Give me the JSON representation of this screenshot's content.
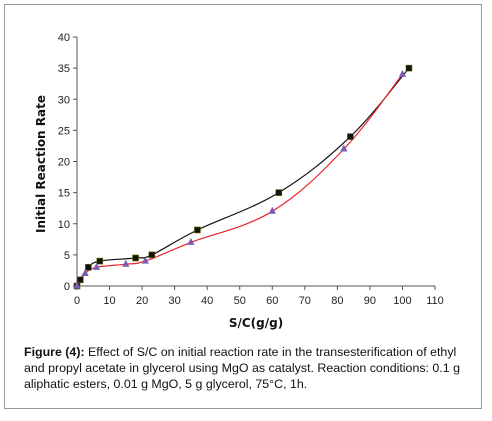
{
  "chart_data": {
    "type": "scatter",
    "xlabel": "S/C(g/g)",
    "ylabel": "Initial Reaction Rate",
    "xlim": [
      0,
      110
    ],
    "ylim": [
      0,
      40
    ],
    "x_ticks": [
      0,
      10,
      20,
      30,
      40,
      50,
      60,
      70,
      80,
      90,
      100,
      110
    ],
    "y_ticks": [
      0,
      5,
      10,
      15,
      20,
      25,
      30,
      35,
      40
    ],
    "grid": false,
    "series": [
      {
        "marker": "square",
        "color": "#111111",
        "line_color": "#111111",
        "points": [
          [
            0,
            0
          ],
          [
            1,
            1
          ],
          [
            3.5,
            3
          ],
          [
            7,
            4
          ],
          [
            18,
            4.5
          ],
          [
            23,
            5
          ],
          [
            37,
            9
          ],
          [
            62,
            15
          ],
          [
            84,
            24
          ],
          [
            102,
            35
          ]
        ]
      },
      {
        "marker": "triangle",
        "color": "#7c5bb5",
        "line_color": "#e8262b",
        "points": [
          [
            0,
            0
          ],
          [
            2.5,
            2
          ],
          [
            6,
            3
          ],
          [
            15,
            3.5
          ],
          [
            21,
            4
          ],
          [
            35,
            7
          ],
          [
            60,
            12
          ],
          [
            82,
            22
          ],
          [
            100,
            34
          ]
        ]
      }
    ]
  },
  "caption": {
    "label": "Figure (4):",
    "text": " Effect of S/C on initial reaction rate in the transesterification of ethyl and propyl acetate in glycerol using MgO as catalyst. Reaction conditions: 0.1 g aliphatic esters, 0.01 g MgO, 5 g glycerol, 75°C, 1h."
  }
}
